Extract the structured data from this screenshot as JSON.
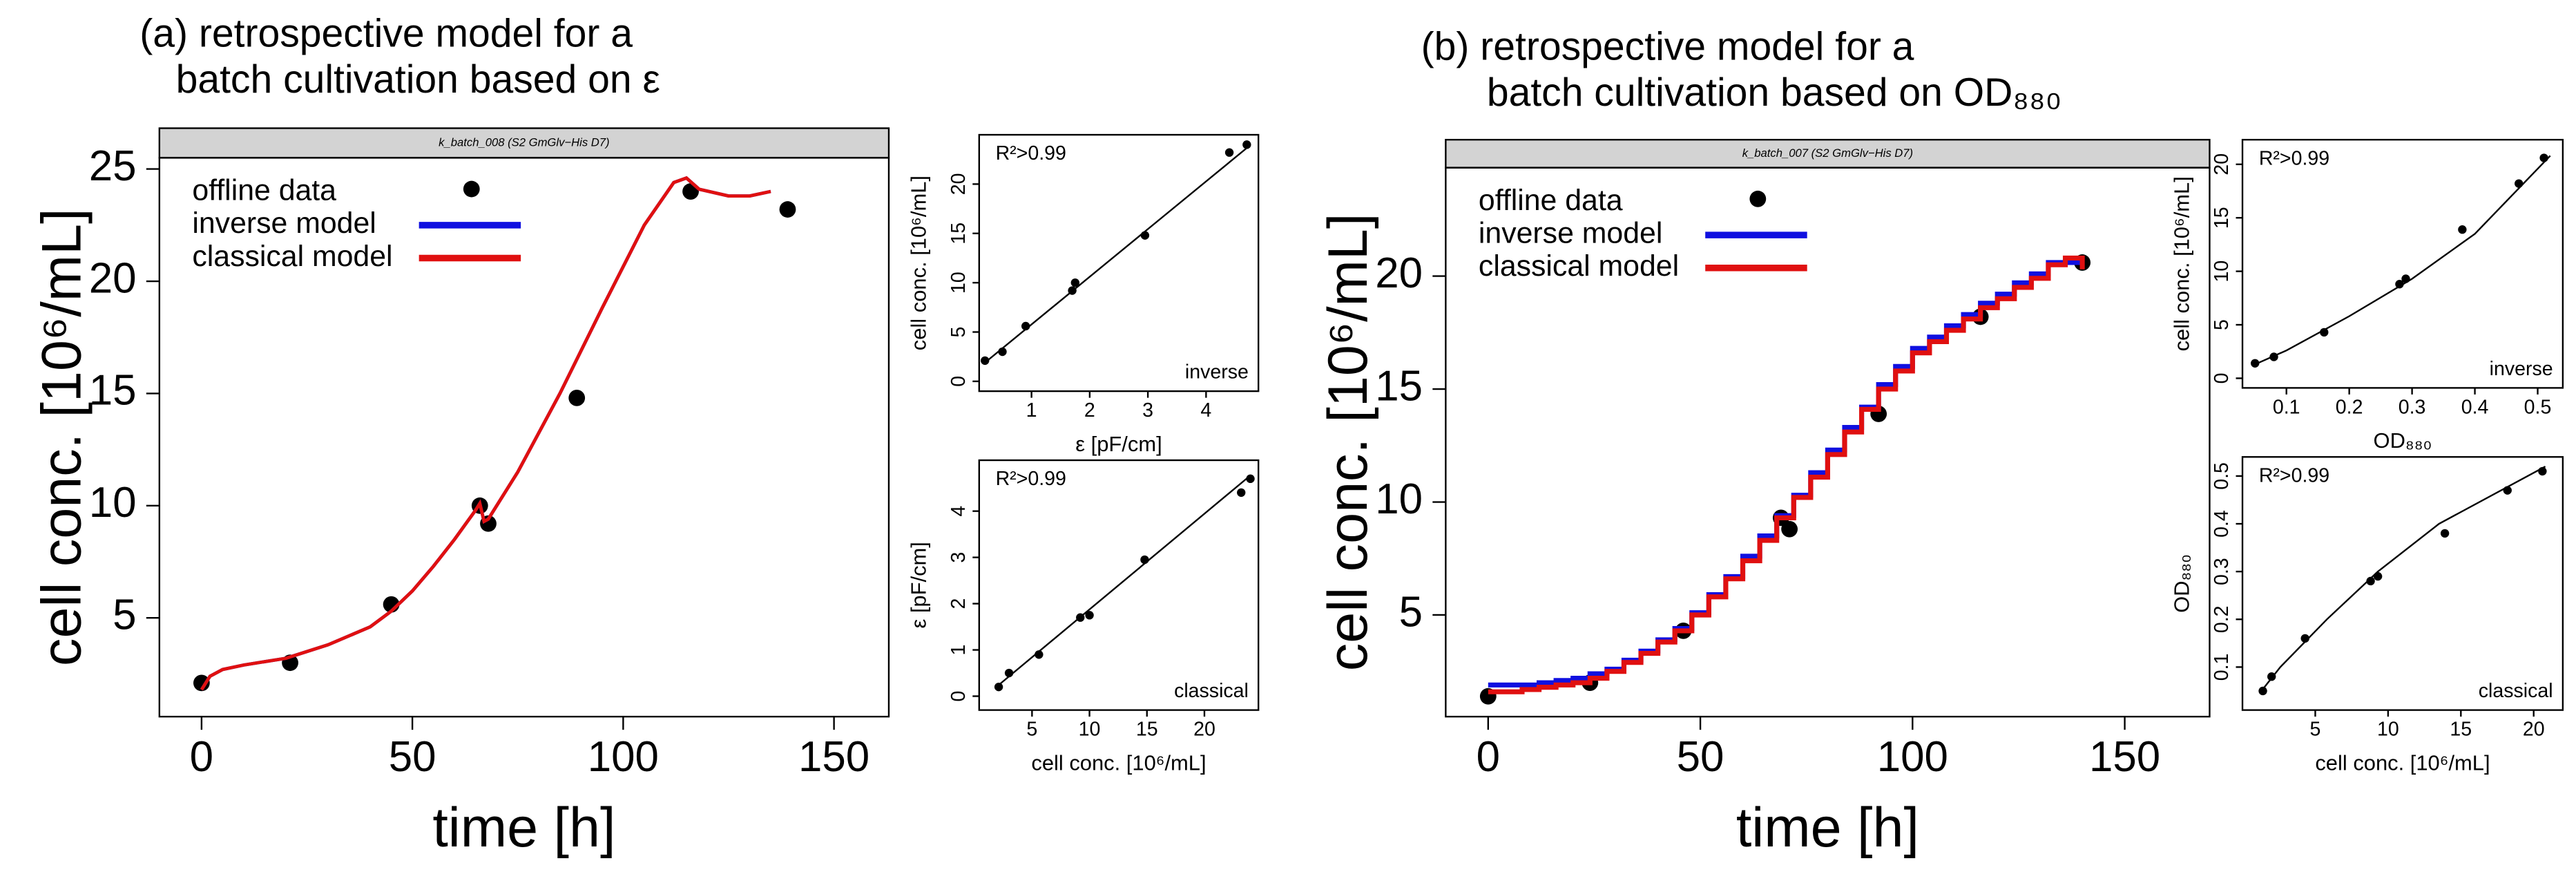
{
  "chart_data": [
    {
      "type": "scatter",
      "title": [
        "(a) retrospective model for a",
        "batch cultivation based on ε"
      ],
      "header": "k_batch_008 (S2 GmGlv−His D7)",
      "xlabel": "time [h]",
      "ylabel": "cell conc. [10⁶/mL]",
      "xlim": [
        -10,
        163
      ],
      "ylim": [
        0.6,
        25.5
      ],
      "xticks": [
        0,
        50,
        100,
        150
      ],
      "yticks": [
        5,
        10,
        15,
        20,
        25
      ],
      "legend": "upper left",
      "series": [
        {
          "name": "offline data",
          "type": "points",
          "color": "#000000",
          "x": [
            0,
            21,
            45,
            66,
            68,
            89,
            116,
            139
          ],
          "values": [
            2.1,
            3.0,
            5.6,
            10,
            9.2,
            14.8,
            24,
            23.2
          ]
        },
        {
          "name": "inverse model",
          "type": "line",
          "color": "#1010e0",
          "x": [
            0,
            1,
            2,
            5,
            10,
            20,
            30,
            40,
            45,
            50,
            55,
            60,
            65,
            66,
            67,
            68,
            75,
            85,
            95,
            105,
            112,
            115,
            118,
            125,
            130,
            135
          ],
          "values": [
            1.8,
            2.1,
            2.4,
            2.7,
            2.9,
            3.2,
            3.8,
            4.6,
            5.3,
            6.2,
            7.3,
            8.5,
            9.8,
            10.1,
            9.3,
            9.4,
            11.5,
            15.0,
            18.8,
            22.5,
            24.4,
            24.6,
            24.1,
            23.8,
            23.8,
            24.0
          ]
        },
        {
          "name": "classical model",
          "type": "line",
          "color": "#e01010",
          "x": [
            0,
            1,
            2,
            5,
            10,
            20,
            30,
            40,
            45,
            50,
            55,
            60,
            65,
            66,
            67,
            68,
            75,
            85,
            95,
            105,
            112,
            115,
            118,
            125,
            130,
            135
          ],
          "values": [
            1.8,
            2.1,
            2.4,
            2.7,
            2.9,
            3.2,
            3.8,
            4.6,
            5.3,
            6.2,
            7.3,
            8.5,
            9.8,
            10.1,
            9.3,
            9.4,
            11.5,
            15.0,
            18.8,
            22.5,
            24.4,
            24.6,
            24.1,
            23.8,
            23.8,
            24.0
          ]
        }
      ]
    },
    {
      "type": "scatter",
      "annotation": "R²>0.99",
      "label": "inverse",
      "xlabel": "ε [pF/cm]",
      "ylabel": "cell conc. [10⁶/mL]",
      "xlim": [
        0.1,
        4.9
      ],
      "ylim": [
        -1,
        25
      ],
      "xticks": [
        1,
        2,
        3,
        4
      ],
      "yticks": [
        0,
        5,
        10,
        15,
        20
      ],
      "series": [
        {
          "type": "points",
          "color": "#000000",
          "x": [
            0.2,
            0.5,
            0.9,
            1.7,
            1.75,
            2.95,
            4.4,
            4.7
          ],
          "values": [
            2.1,
            3.0,
            5.6,
            9.2,
            10,
            14.8,
            23.2,
            24
          ]
        },
        {
          "type": "line",
          "color": "#000000",
          "x": [
            0.2,
            4.75
          ],
          "values": [
            1.9,
            23.9
          ]
        }
      ]
    },
    {
      "type": "scatter",
      "annotation": "R²>0.99",
      "label": "classical",
      "xlabel": "cell conc. [10⁶/mL]",
      "ylabel": "ε [pF/cm]",
      "xlim": [
        0.4,
        24.7
      ],
      "ylim": [
        -0.3,
        5.1
      ],
      "xticks": [
        5,
        10,
        15,
        20
      ],
      "yticks": [
        0,
        1,
        2,
        3,
        4
      ],
      "series": [
        {
          "type": "points",
          "color": "#000000",
          "x": [
            2.1,
            3.0,
            5.6,
            9.2,
            10,
            14.8,
            23.2,
            24
          ],
          "values": [
            0.2,
            0.5,
            0.9,
            1.7,
            1.75,
            2.95,
            4.4,
            4.7
          ]
        },
        {
          "type": "line",
          "color": "#000000",
          "x": [
            1.9,
            23.9
          ],
          "values": [
            0.2,
            4.75
          ]
        }
      ]
    },
    {
      "type": "scatter",
      "title": [
        "(b) retrospective model for a",
        "batch cultivation based on OD₈₈₀"
      ],
      "header": "k_batch_007 (S2 GmGlv−His D7)",
      "xlabel": "time [h]",
      "ylabel": "cell conc. [10⁶/mL]",
      "xlim": [
        -10,
        170
      ],
      "ylim": [
        0.5,
        24.8
      ],
      "xticks": [
        0,
        50,
        100,
        150
      ],
      "yticks": [
        5,
        10,
        15,
        20
      ],
      "legend": "upper left",
      "series": [
        {
          "name": "offline data",
          "type": "points",
          "color": "#000000",
          "x": [
            0,
            24,
            46,
            69,
            71,
            92,
            116,
            140
          ],
          "values": [
            1.4,
            2.0,
            4.3,
            9.3,
            8.8,
            13.9,
            18.2,
            20.6
          ]
        },
        {
          "name": "inverse model",
          "type": "steps",
          "color": "#1010e0",
          "x": [
            0,
            4,
            8,
            12,
            16,
            20,
            24,
            28,
            32,
            36,
            40,
            44,
            48,
            52,
            56,
            60,
            64,
            68,
            72,
            76,
            80,
            84,
            88,
            92,
            96,
            100,
            104,
            108,
            112,
            116,
            120,
            124,
            128,
            132,
            136,
            140
          ],
          "values": [
            1.9,
            1.9,
            1.9,
            2.0,
            2.1,
            2.2,
            2.4,
            2.6,
            3.0,
            3.4,
            3.9,
            4.4,
            5.1,
            5.9,
            6.7,
            7.6,
            8.5,
            9.4,
            10.3,
            11.3,
            12.3,
            13.3,
            14.2,
            15.2,
            16.0,
            16.8,
            17.3,
            17.8,
            18.3,
            18.8,
            19.2,
            19.7,
            20.1,
            20.6,
            20.6,
            20.6
          ]
        },
        {
          "name": "classical model",
          "type": "steps",
          "color": "#e01010",
          "x": [
            0,
            4,
            8,
            12,
            16,
            20,
            24,
            28,
            32,
            36,
            40,
            44,
            48,
            52,
            56,
            60,
            64,
            68,
            72,
            76,
            80,
            84,
            88,
            92,
            96,
            100,
            104,
            108,
            112,
            116,
            120,
            124,
            128,
            132,
            136,
            140
          ],
          "values": [
            1.6,
            1.6,
            1.7,
            1.8,
            1.9,
            2.0,
            2.2,
            2.5,
            2.9,
            3.3,
            3.8,
            4.3,
            5.0,
            5.8,
            6.6,
            7.4,
            8.3,
            9.3,
            10.2,
            11.1,
            12.1,
            13.1,
            14.1,
            15.0,
            15.8,
            16.6,
            17.1,
            17.6,
            18.1,
            18.6,
            19.0,
            19.5,
            19.9,
            20.5,
            20.8,
            20.3
          ]
        }
      ]
    },
    {
      "type": "scatter",
      "annotation": "R²>0.99",
      "label": "inverse",
      "xlabel": "OD₈₈₀",
      "ylabel": "cell conc. [10⁶/mL]",
      "xlim": [
        0.03,
        0.54
      ],
      "ylim": [
        -0.9,
        22.3
      ],
      "xticks": [
        0.1,
        0.2,
        0.3,
        0.4,
        0.5
      ],
      "yticks": [
        0,
        5,
        10,
        15,
        20
      ],
      "series": [
        {
          "type": "points",
          "color": "#000000",
          "x": [
            0.05,
            0.08,
            0.16,
            0.28,
            0.29,
            0.38,
            0.47,
            0.51
          ],
          "values": [
            1.4,
            2.0,
            4.3,
            8.8,
            9.3,
            13.9,
            18.2,
            20.6
          ]
        },
        {
          "type": "line",
          "color": "#000000",
          "x": [
            0.05,
            0.1,
            0.2,
            0.3,
            0.4,
            0.52
          ],
          "values": [
            1.3,
            2.6,
            5.8,
            9.3,
            13.5,
            20.8
          ]
        }
      ]
    },
    {
      "type": "scatter",
      "annotation": "R²>0.99",
      "label": "classical",
      "xlabel": "cell conc. [10⁶/mL]",
      "ylabel": "OD₈₈₀",
      "xlim": [
        0,
        22
      ],
      "ylim": [
        0.01,
        0.54
      ],
      "xticks": [
        5,
        10,
        15,
        20
      ],
      "yticks": [
        0.1,
        0.2,
        0.3,
        0.4,
        0.5
      ],
      "series": [
        {
          "type": "points",
          "color": "#000000",
          "x": [
            1.4,
            2.0,
            4.3,
            8.8,
            9.3,
            13.9,
            18.2,
            20.6
          ],
          "values": [
            0.05,
            0.08,
            0.16,
            0.28,
            0.29,
            0.38,
            0.47,
            0.51
          ]
        },
        {
          "type": "line",
          "color": "#000000",
          "x": [
            1.3,
            2.6,
            5.8,
            9.3,
            13.5,
            20.8
          ],
          "values": [
            0.05,
            0.1,
            0.2,
            0.3,
            0.4,
            0.52
          ]
        }
      ]
    }
  ]
}
